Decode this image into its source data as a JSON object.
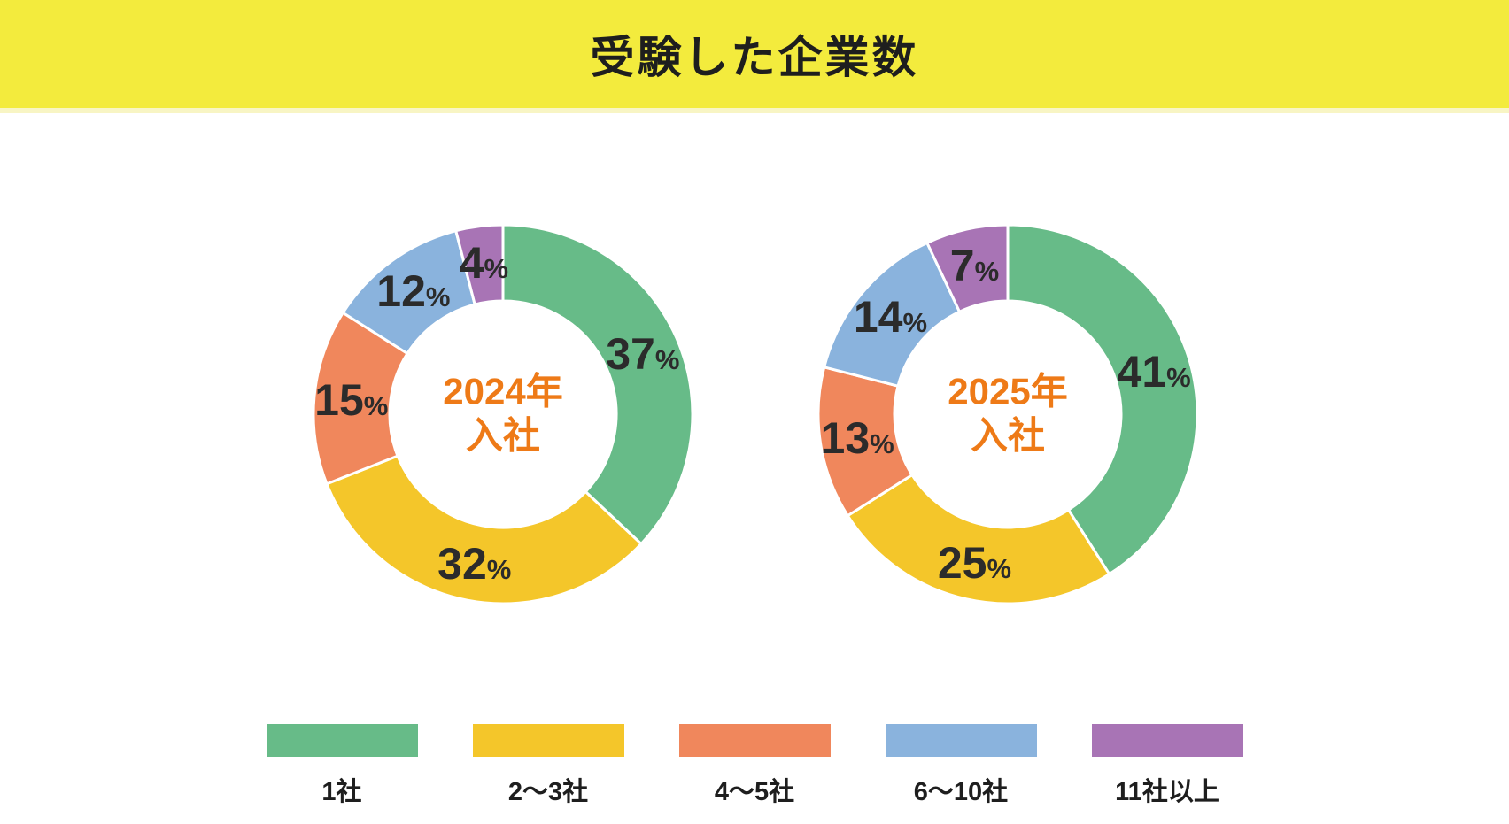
{
  "header": {
    "title": "受験した企業数"
  },
  "units": {
    "percent": "%"
  },
  "colors": {
    "banner_yellow": "#F3EB3D",
    "title_text": "#1E1E1E",
    "center_text_orange": "#EE7A17",
    "percent_label_text": "#2B2B2B",
    "segment_green": "#67BB88",
    "segment_yellow": "#F4C62A",
    "segment_orange": "#F0875C",
    "segment_blue": "#8AB3DD",
    "segment_purple": "#A874B5"
  },
  "chart_data": [
    {
      "type": "pie",
      "variant": "donut",
      "center_line1": "2024年",
      "center_line2": "入社",
      "start_angle_deg": 0,
      "direction": "clockwise",
      "segments": [
        {
          "label": "1社",
          "value": 37,
          "color": "#67BB88"
        },
        {
          "label": "2～3社",
          "value": 32,
          "color": "#F4C62A"
        },
        {
          "label": "4～5社",
          "value": 15,
          "color": "#F0875C"
        },
        {
          "label": "6～10社",
          "value": 12,
          "color": "#8AB3DD"
        },
        {
          "label": "11社以上",
          "value": 4,
          "color": "#A874B5"
        }
      ]
    },
    {
      "type": "pie",
      "variant": "donut",
      "center_line1": "2025年",
      "center_line2": "入社",
      "start_angle_deg": 0,
      "direction": "clockwise",
      "segments": [
        {
          "label": "1社",
          "value": 41,
          "color": "#67BB88"
        },
        {
          "label": "2～3社",
          "value": 25,
          "color": "#F4C62A"
        },
        {
          "label": "4～5社",
          "value": 13,
          "color": "#F0875C"
        },
        {
          "label": "6～10社",
          "value": 14,
          "color": "#8AB3DD"
        },
        {
          "label": "11社以上",
          "value": 7,
          "color": "#A874B5"
        }
      ]
    }
  ],
  "legend": {
    "items": [
      {
        "label": "1社",
        "color": "#67BB88"
      },
      {
        "label": "2～3社",
        "color": "#F4C62A"
      },
      {
        "label": "4～5社",
        "color": "#F0875C"
      },
      {
        "label": "6～10社",
        "color": "#8AB3DD"
      },
      {
        "label": "11社以上",
        "color": "#A874B5"
      }
    ]
  }
}
